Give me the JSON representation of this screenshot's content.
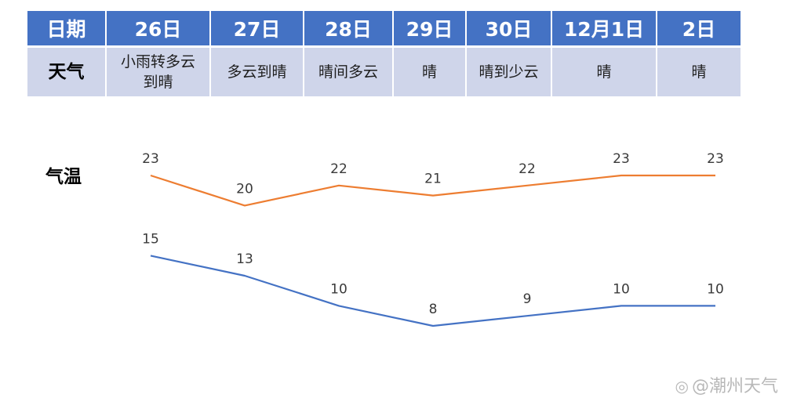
{
  "table": {
    "date_label": "日期",
    "weather_label": "天气",
    "columns": [
      {
        "date": "26日",
        "weather": "小雨转多云到晴"
      },
      {
        "date": "27日",
        "weather": "多云到晴"
      },
      {
        "date": "28日",
        "weather": "晴间多云"
      },
      {
        "date": "29日",
        "weather": "晴"
      },
      {
        "date": "30日",
        "weather": "晴到少云"
      },
      {
        "date": "12月1日",
        "weather": "晴"
      },
      {
        "date": "2日",
        "weather": "晴"
      }
    ]
  },
  "chart_label": "气温",
  "chart_data": {
    "type": "line",
    "title": "",
    "x": [
      "26日",
      "27日",
      "28日",
      "29日",
      "30日",
      "12月1日",
      "2日"
    ],
    "series": [
      {
        "values": [
          23,
          20,
          22,
          21,
          22,
          23,
          23
        ],
        "color": "#ed7d31"
      },
      {
        "values": [
          15,
          13,
          10,
          8,
          9,
          10,
          10
        ],
        "color": "#4472c4"
      }
    ],
    "ylim": [
      8,
      23
    ],
    "grid": false,
    "legend": "none"
  },
  "colors": {
    "header_bg": "#4472c4",
    "row_bg": "#cfd5ea"
  },
  "watermark": {
    "icon": "weibo-icon",
    "text": "@潮州天气"
  }
}
